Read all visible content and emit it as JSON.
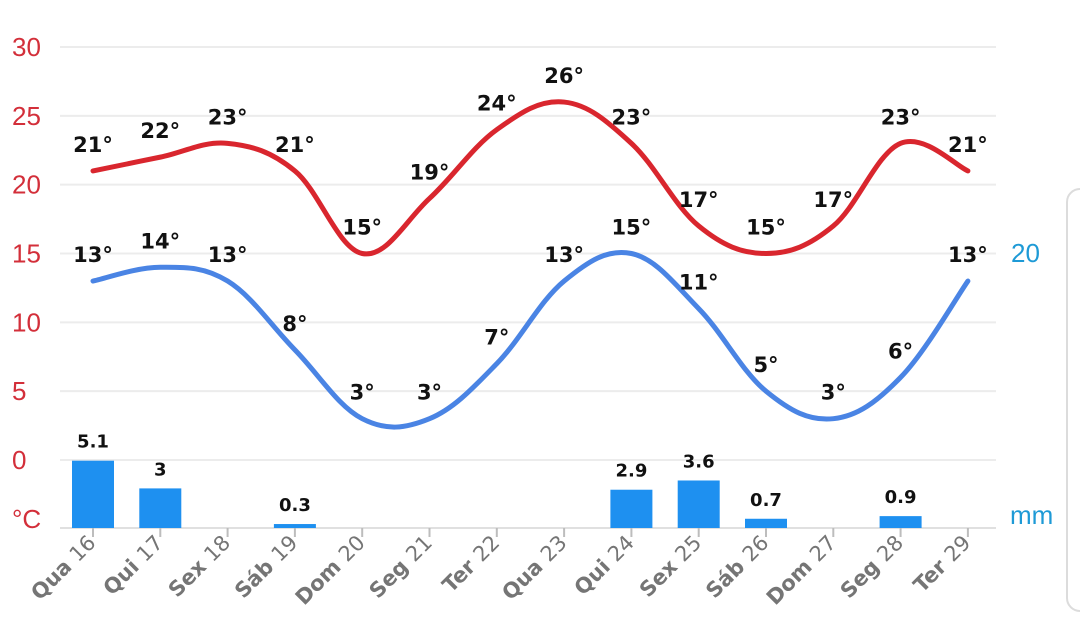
{
  "chart_data": {
    "type": "line",
    "categories": [
      {
        "day": "Qua",
        "date": "16"
      },
      {
        "day": "Qui",
        "date": "17"
      },
      {
        "day": "Sex",
        "date": "18"
      },
      {
        "day": "Sáb",
        "date": "19"
      },
      {
        "day": "Dom",
        "date": "20"
      },
      {
        "day": "Seg",
        "date": "21"
      },
      {
        "day": "Ter",
        "date": "22"
      },
      {
        "day": "Qua",
        "date": "23"
      },
      {
        "day": "Qui",
        "date": "24"
      },
      {
        "day": "Sex",
        "date": "25"
      },
      {
        "day": "Sáb",
        "date": "26"
      },
      {
        "day": "Dom",
        "date": "27"
      },
      {
        "day": "Seg",
        "date": "28"
      },
      {
        "day": "Ter",
        "date": "29"
      }
    ],
    "series": [
      {
        "type": "line",
        "color": "#d9262e",
        "values": [
          21,
          22,
          23,
          21,
          15,
          19,
          24,
          26,
          23,
          17,
          15,
          17,
          23,
          21
        ]
      },
      {
        "type": "line",
        "color": "#4a84e4",
        "values": [
          13,
          14,
          13,
          8,
          3,
          3,
          7,
          13,
          15,
          11,
          5,
          3,
          6,
          13
        ]
      },
      {
        "type": "bar",
        "color": "#1e90f0",
        "values": [
          5.1,
          3,
          null,
          0.3,
          null,
          null,
          null,
          null,
          2.9,
          3.6,
          0.7,
          null,
          0.9,
          null
        ]
      }
    ],
    "temp_unit_suffix": "°",
    "left_axis": {
      "ticks": [
        "30",
        "25",
        "20",
        "15",
        "10",
        "5",
        "0"
      ],
      "unit": "°C",
      "range": [
        0,
        30
      ],
      "color": "#d32f3a"
    },
    "right_axis": {
      "tick": "20",
      "unit": "mm",
      "color": "#1e9ad6"
    },
    "grid": true
  }
}
